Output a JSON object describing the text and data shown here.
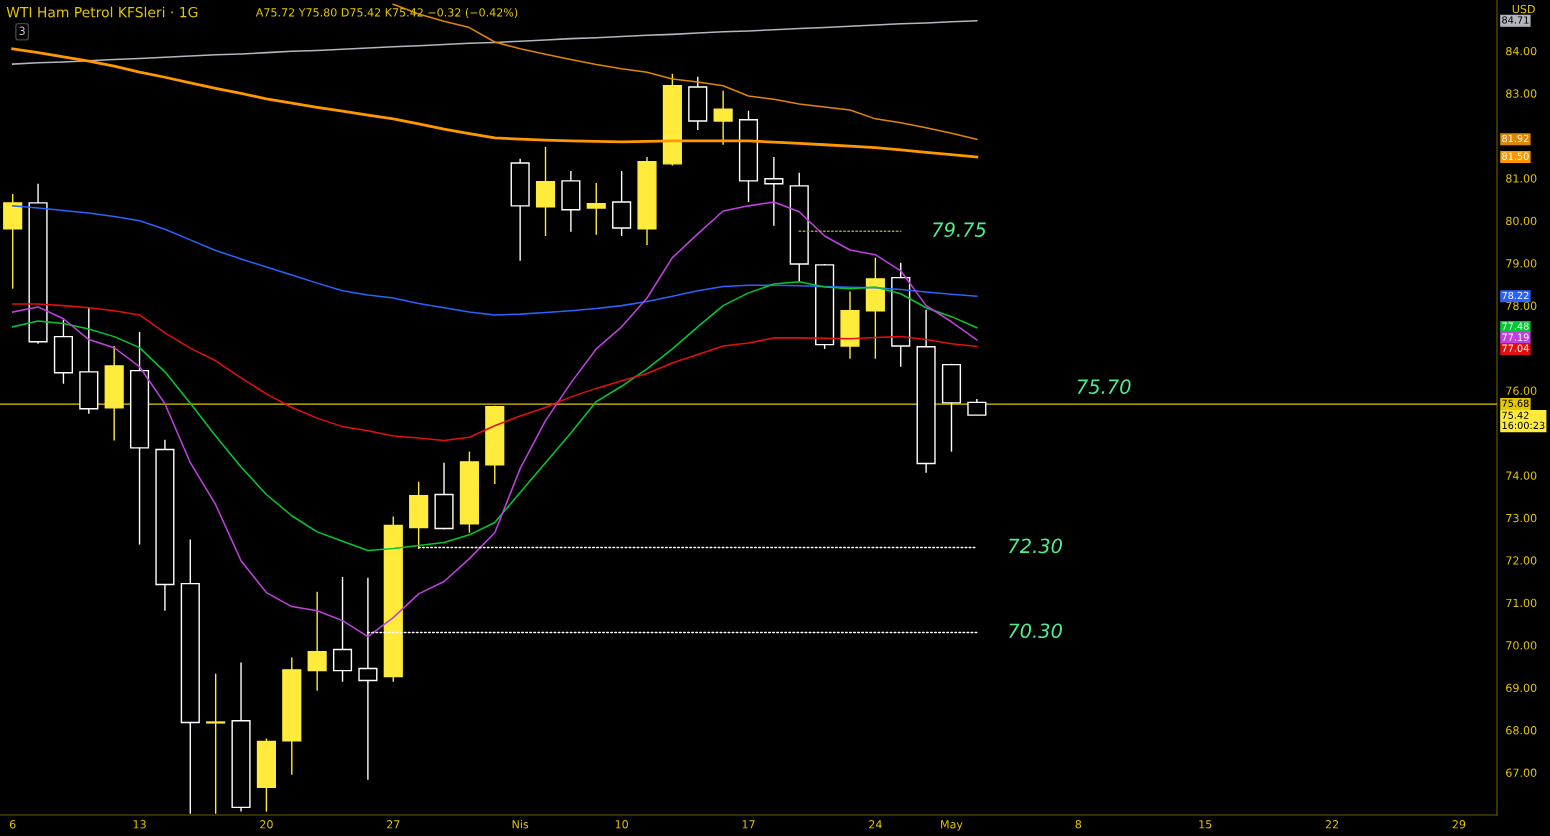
{
  "chart_data": {
    "type": "candlestick",
    "title": "WTI Ham Petrol KFSleri · 1G",
    "subtitle": "A75.72 Y75.80 D75.42 K75.42 −0.32 (−0.42%)",
    "categories": [
      "6",
      null,
      null,
      null,
      null,
      "13",
      null,
      null,
      null,
      null,
      "20",
      null,
      null,
      null,
      null,
      "27",
      null,
      null,
      null,
      null,
      "Nis",
      null,
      null,
      null,
      "10",
      null,
      null,
      null,
      null,
      "17",
      null,
      null,
      null,
      null,
      "24",
      null,
      null,
      "May",
      null,
      null,
      null,
      null,
      "8",
      null,
      null,
      null,
      null,
      "15",
      null,
      null,
      null,
      null,
      "22",
      null,
      null,
      null,
      null,
      "29",
      null
    ],
    "ohlc": [
      [
        79.81,
        80.63,
        78.4,
        80.42
      ],
      [
        80.42,
        80.87,
        77.1,
        77.15
      ],
      [
        77.27,
        77.67,
        76.16,
        76.42
      ],
      [
        76.44,
        77.97,
        75.45,
        75.57
      ],
      [
        75.59,
        77.05,
        74.82,
        76.58
      ],
      [
        76.47,
        77.38,
        72.37,
        74.65
      ],
      [
        74.61,
        74.84,
        70.81,
        71.43
      ],
      [
        71.45,
        72.49,
        66.03,
        68.18
      ],
      [
        68.17,
        69.33,
        66.03,
        68.19
      ],
      [
        68.22,
        69.59,
        66.08,
        66.18
      ],
      [
        66.65,
        67.8,
        66.08,
        67.73
      ],
      [
        67.75,
        69.71,
        66.95,
        69.42
      ],
      [
        69.4,
        71.26,
        68.93,
        69.85
      ],
      [
        69.9,
        71.61,
        69.14,
        69.4
      ],
      [
        69.45,
        71.59,
        66.83,
        69.17
      ],
      [
        69.26,
        73.03,
        69.14,
        72.82
      ],
      [
        72.77,
        73.85,
        72.27,
        73.52
      ],
      [
        73.55,
        74.3,
        72.73,
        72.75
      ],
      [
        72.86,
        74.56,
        72.65,
        74.32
      ],
      [
        74.25,
        75.64,
        73.8,
        75.62
      ],
      [
        81.36,
        81.46,
        79.06,
        80.35
      ],
      [
        80.33,
        81.74,
        79.64,
        80.92
      ],
      [
        80.94,
        81.17,
        79.74,
        80.26
      ],
      [
        80.3,
        80.89,
        79.67,
        80.4
      ],
      [
        80.44,
        81.17,
        79.64,
        79.83
      ],
      [
        79.81,
        81.5,
        79.43,
        81.39
      ],
      [
        81.34,
        83.46,
        81.3,
        83.18
      ],
      [
        83.15,
        83.39,
        82.14,
        82.35
      ],
      [
        82.35,
        83.06,
        81.79,
        82.63
      ],
      [
        82.38,
        82.59,
        80.44,
        80.94
      ],
      [
        80.99,
        81.5,
        79.88,
        80.87
      ],
      [
        80.82,
        81.13,
        78.56,
        78.98
      ],
      [
        78.96,
        78.98,
        76.98,
        77.08
      ],
      [
        77.05,
        78.33,
        76.75,
        77.88
      ],
      [
        77.88,
        79.13,
        76.75,
        78.63
      ],
      [
        78.66,
        79.01,
        76.56,
        77.05
      ],
      [
        77.03,
        77.9,
        74.06,
        74.28
      ],
      [
        76.61,
        76.63,
        74.56,
        75.71
      ],
      [
        75.72,
        75.8,
        75.42,
        75.42
      ],
      null,
      null,
      null,
      null,
      null,
      null,
      null,
      null,
      null,
      null,
      null,
      null,
      null,
      null,
      null,
      null,
      null,
      null,
      null,
      null
    ],
    "colors": [
      "#ffeb3b",
      "#ffffff",
      "#ffffff",
      "#ffffff",
      "#ffeb3b",
      "#ffffff",
      "#ffffff",
      "#ffffff",
      "#ffeb3b",
      "#ffffff",
      "#ffeb3b",
      "#ffeb3b",
      "#ffeb3b",
      "#ffffff",
      "#ffffff",
      "#ffeb3b",
      "#ffeb3b",
      "#ffffff",
      "#ffeb3b",
      "#ffeb3b",
      "#ffffff",
      "#ffeb3b",
      "#ffffff",
      "#ffeb3b",
      "#ffffff",
      "#ffeb3b",
      "#ffeb3b",
      "#ffffff",
      "#ffeb3b",
      "#ffffff",
      "#ffffff",
      "#ffffff",
      "#ffffff",
      "#ffeb3b",
      "#ffeb3b",
      "#ffffff",
      "#ffffff",
      "#ffffff",
      "#ffffff",
      null,
      null,
      null,
      null,
      null,
      null,
      null,
      null,
      null,
      null,
      null,
      null,
      null,
      null,
      null,
      null,
      null,
      null,
      null,
      null
    ],
    "series": [
      {
        "type": "line",
        "color": "#b2b5be",
        "values": [
          83.69,
          83.72,
          83.74,
          83.77,
          83.8,
          83.82,
          83.85,
          83.88,
          83.91,
          83.93,
          83.96,
          83.99,
          84.01,
          84.04,
          84.07,
          84.1,
          84.12,
          84.15,
          84.18,
          84.2,
          84.23,
          84.26,
          84.29,
          84.31,
          84.34,
          84.37,
          84.39,
          84.42,
          84.45,
          84.47,
          84.5,
          84.53,
          84.55,
          84.58,
          84.61,
          84.64,
          84.66,
          84.69,
          84.71,
          null,
          null,
          null,
          null,
          null,
          null,
          null,
          null,
          null,
          null,
          null,
          null,
          null,
          null,
          null,
          null,
          null,
          null,
          null,
          null
        ]
      },
      {
        "type": "line",
        "color": "#e08600",
        "values": [
          null,
          null,
          null,
          null,
          null,
          null,
          null,
          null,
          null,
          null,
          null,
          null,
          null,
          null,
          null,
          85.1,
          84.87,
          84.7,
          84.55,
          84.21,
          84.05,
          83.92,
          83.8,
          83.68,
          83.58,
          83.5,
          83.34,
          83.27,
          83.18,
          82.94,
          82.86,
          82.75,
          82.68,
          82.61,
          82.4,
          82.31,
          82.19,
          82.06,
          81.92,
          null,
          null,
          null,
          null,
          null,
          null,
          null,
          null,
          null,
          null,
          null,
          null,
          null,
          null,
          null,
          null,
          null,
          null,
          null,
          null
        ]
      },
      {
        "type": "line",
        "color": "#ff9800",
        "values": [
          84.05,
          83.96,
          83.86,
          83.76,
          83.64,
          83.5,
          83.38,
          83.25,
          83.12,
          83.0,
          82.87,
          82.77,
          82.67,
          82.58,
          82.49,
          82.4,
          82.28,
          82.16,
          82.05,
          81.95,
          81.92,
          81.9,
          81.88,
          81.87,
          81.86,
          81.87,
          81.88,
          81.88,
          81.88,
          81.88,
          81.85,
          81.82,
          81.79,
          81.76,
          81.72,
          81.67,
          81.61,
          81.56,
          81.5,
          null,
          null,
          null,
          null,
          null,
          null,
          null,
          null,
          null,
          null,
          null,
          null,
          null,
          null,
          null,
          null,
          null,
          null,
          null,
          null
        ]
      },
      {
        "type": "line",
        "color": "#2962ff",
        "values": [
          80.35,
          80.3,
          80.24,
          80.18,
          80.1,
          80.0,
          79.8,
          79.55,
          79.3,
          79.1,
          78.91,
          78.72,
          78.53,
          78.35,
          78.25,
          78.18,
          78.05,
          77.95,
          77.85,
          77.78,
          77.8,
          77.84,
          77.88,
          77.93,
          78.0,
          78.1,
          78.22,
          78.35,
          78.45,
          78.48,
          78.48,
          78.47,
          78.45,
          78.43,
          78.42,
          78.38,
          78.32,
          78.27,
          78.22,
          null,
          null,
          null,
          null,
          null,
          null,
          null,
          null,
          null,
          null,
          null,
          null,
          null,
          null,
          null,
          null,
          null,
          null,
          null,
          null
        ]
      },
      {
        "type": "line",
        "color": "#00c832",
        "values": [
          77.5,
          77.64,
          77.58,
          77.45,
          77.27,
          77.01,
          76.44,
          75.7,
          74.93,
          74.2,
          73.55,
          73.05,
          72.67,
          72.45,
          72.23,
          72.28,
          72.35,
          72.42,
          72.6,
          72.89,
          73.6,
          74.3,
          75.0,
          75.74,
          76.1,
          76.51,
          76.98,
          77.5,
          78.0,
          78.3,
          78.51,
          78.56,
          78.44,
          78.4,
          78.44,
          78.28,
          77.95,
          77.74,
          77.48,
          null,
          null,
          null,
          null,
          null,
          null,
          null,
          null,
          null,
          null,
          null,
          null,
          null,
          null,
          null,
          null,
          null,
          null,
          null,
          null
        ]
      },
      {
        "type": "line",
        "color": "#c040e0",
        "values": [
          77.85,
          77.97,
          77.69,
          77.2,
          77.01,
          76.56,
          75.69,
          74.3,
          73.31,
          71.99,
          71.24,
          70.91,
          70.81,
          70.58,
          70.2,
          70.65,
          71.21,
          71.5,
          72.04,
          72.65,
          74.16,
          75.29,
          76.18,
          76.98,
          77.5,
          78.18,
          79.13,
          79.69,
          80.23,
          80.35,
          80.44,
          80.21,
          79.64,
          79.31,
          79.2,
          78.82,
          78.0,
          77.62,
          77.19,
          null,
          null,
          null,
          null,
          null,
          null,
          null,
          null,
          null,
          null,
          null,
          null,
          null,
          null,
          null,
          null,
          null,
          null,
          null,
          null
        ]
      },
      {
        "type": "line",
        "color": "#e01010",
        "values": [
          78.04,
          78.04,
          78.0,
          77.95,
          77.88,
          77.78,
          77.36,
          77.0,
          76.7,
          76.3,
          75.92,
          75.6,
          75.35,
          75.15,
          75.05,
          74.93,
          74.88,
          74.82,
          74.9,
          75.17,
          75.4,
          75.6,
          75.85,
          76.05,
          76.23,
          76.4,
          76.65,
          76.85,
          77.05,
          77.12,
          77.24,
          77.24,
          77.23,
          77.22,
          77.25,
          77.27,
          77.2,
          77.1,
          77.04,
          null,
          null,
          null,
          null,
          null,
          null,
          null,
          null,
          null,
          null,
          null,
          null,
          null,
          null,
          null,
          null,
          null,
          null,
          null,
          null
        ]
      },
      {
        "type": "line",
        "name": "79.75",
        "color": "#9a9a30",
        "line_style": "dotted",
        "values": [
          null,
          null,
          null,
          null,
          null,
          null,
          null,
          null,
          null,
          null,
          null,
          null,
          null,
          null,
          null,
          null,
          null,
          null,
          null,
          null,
          null,
          null,
          null,
          null,
          null,
          null,
          null,
          null,
          null,
          null,
          null,
          79.75,
          79.75,
          79.75,
          79.75,
          79.75,
          null,
          null,
          null,
          null,
          null,
          null,
          null,
          null,
          null,
          null,
          null,
          null,
          null,
          null,
          null,
          null,
          null,
          null,
          null,
          null,
          null,
          null,
          null
        ]
      },
      {
        "type": "line",
        "name": "72.30",
        "color": "#ffffff",
        "line_style": "dotted",
        "values": [
          null,
          null,
          null,
          null,
          null,
          null,
          null,
          null,
          null,
          null,
          null,
          null,
          null,
          null,
          null,
          null,
          72.3,
          72.3,
          72.3,
          72.3,
          72.3,
          72.3,
          72.3,
          72.3,
          72.3,
          72.3,
          72.3,
          72.3,
          72.3,
          72.3,
          72.3,
          72.3,
          72.3,
          72.3,
          72.3,
          72.3,
          72.3,
          72.3,
          72.3,
          null,
          null,
          null,
          null,
          null,
          null,
          null,
          null,
          null,
          null,
          null,
          null,
          null,
          null,
          null,
          null,
          null,
          null,
          null,
          null
        ]
      },
      {
        "type": "line",
        "name": "70.30",
        "color": "#ffffff",
        "line_style": "dotted",
        "values": [
          null,
          null,
          null,
          null,
          null,
          null,
          null,
          null,
          null,
          null,
          null,
          null,
          null,
          null,
          70.3,
          70.3,
          70.3,
          70.3,
          70.3,
          70.3,
          70.3,
          70.3,
          70.3,
          70.3,
          70.3,
          70.3,
          70.3,
          70.3,
          70.3,
          70.3,
          70.3,
          70.3,
          70.3,
          70.3,
          70.3,
          70.3,
          70.3,
          70.3,
          70.3,
          null,
          null,
          null,
          null,
          null,
          null,
          null,
          null,
          null,
          null,
          null,
          null,
          null,
          null,
          null,
          null,
          null,
          null,
          null,
          null
        ]
      }
    ],
    "ref_lines": [
      {
        "axis": "y",
        "value": 75.68,
        "color": "#e6c800",
        "line_style": "solid"
      }
    ],
    "annotations": [
      "3",
      "USD",
      "75.70",
      "84.71",
      "81.92",
      "81.50",
      "78.22",
      "77.48",
      "77.19",
      "77.04",
      "75.68",
      "75.42\n16:00:23"
    ],
    "ylim": [
      66.0,
      85.2
    ],
    "yticks": [
      {
        "value": 67,
        "label": "67.00"
      },
      {
        "value": 68,
        "label": "68.00"
      },
      {
        "value": 69,
        "label": "69.00"
      },
      {
        "value": 70,
        "label": "70.00"
      },
      {
        "value": 71,
        "label": "71.00"
      },
      {
        "value": 72,
        "label": "72.00"
      },
      {
        "value": 73,
        "label": "73.00"
      },
      {
        "value": 74,
        "label": "74.00"
      },
      {
        "value": 76,
        "label": "76.00"
      },
      {
        "value": 78,
        "label": "78.00"
      },
      {
        "value": 79,
        "label": "79.00"
      },
      {
        "value": 80,
        "label": "80.00"
      },
      {
        "value": 81,
        "label": "81.00"
      },
      {
        "value": 83,
        "label": "83.00"
      },
      {
        "value": 84,
        "label": "84.00"
      }
    ]
  }
}
